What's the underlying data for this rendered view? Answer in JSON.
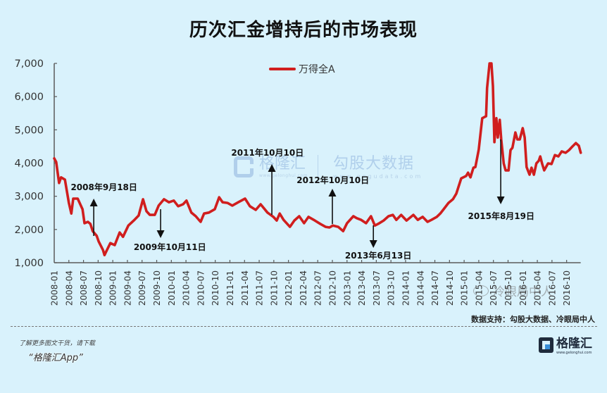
{
  "title": "历次汇金增持后的市场表现",
  "legend": {
    "label": "万得全A",
    "color": "#d01e1e"
  },
  "watermark_center": {
    "brand": "格隆汇",
    "brand_url": "www.gelonghui.com",
    "partner": "勾股大数据",
    "partner_url": "www.gogudata.com"
  },
  "watermark_corner": "冷眼局中人",
  "source": "数据支持：勾股大数据、冷眼局中人",
  "footer": {
    "prompt": "了解更多图文干货，请下载",
    "app": "“格隆汇App”",
    "logo_text": "格隆汇",
    "logo_url": "www.gelonghui.com"
  },
  "chart_data": {
    "type": "line",
    "title": "历次汇金增持后的市场表现",
    "xlabel": "",
    "ylabel": "",
    "x_unit": "months since 2008-01",
    "xlim": [
      "2008-01",
      "2016-12"
    ],
    "ylim": [
      1000,
      7000
    ],
    "grid": false,
    "legend_position": "top-center",
    "x_tick_labels": [
      "2008-01",
      "2008-04",
      "2008-07",
      "2008-10",
      "2009-01",
      "2009-04",
      "2009-07",
      "2009-10",
      "2010-01",
      "2010-04",
      "2010-07",
      "2010-10",
      "2011-01",
      "2011-04",
      "2011-07",
      "2011-10",
      "2012-01",
      "2012-04",
      "2012-07",
      "2012-10",
      "2013-01",
      "2013-04",
      "2013-07",
      "2013-10",
      "2014-01",
      "2014-04",
      "2014-07",
      "2014-10",
      "2015-01",
      "2015-04",
      "2015-07",
      "2015-10",
      "2016-01",
      "2016-04",
      "2016-07",
      "2016-10"
    ],
    "y_ticks": [
      1000,
      2000,
      3000,
      4000,
      5000,
      6000,
      7000
    ],
    "y_tick_labels": [
      "1,000",
      "2,000",
      "3,000",
      "4,000",
      "5,000",
      "6,000",
      "7,000"
    ],
    "series": [
      {
        "name": "万得全A",
        "color": "#d01e1e",
        "points": [
          [
            0,
            4140
          ],
          [
            0.4,
            4030
          ],
          [
            1.0,
            3400
          ],
          [
            1.4,
            3570
          ],
          [
            2.2,
            3500
          ],
          [
            3.0,
            2800
          ],
          [
            3.5,
            2480
          ],
          [
            3.9,
            2930
          ],
          [
            4.8,
            2930
          ],
          [
            5.8,
            2610
          ],
          [
            6.2,
            2190
          ],
          [
            6.9,
            2230
          ],
          [
            7.4,
            2170
          ],
          [
            7.9,
            1950
          ],
          [
            8.7,
            1810
          ],
          [
            9.1,
            1640
          ],
          [
            10.0,
            1380
          ],
          [
            10.3,
            1230
          ],
          [
            10.8,
            1380
          ],
          [
            11.5,
            1590
          ],
          [
            12.4,
            1530
          ],
          [
            13.4,
            1910
          ],
          [
            14.1,
            1780
          ],
          [
            15.2,
            2120
          ],
          [
            16.3,
            2270
          ],
          [
            17.3,
            2420
          ],
          [
            18.2,
            2910
          ],
          [
            18.9,
            2550
          ],
          [
            19.6,
            2440
          ],
          [
            20.6,
            2440
          ],
          [
            21.4,
            2720
          ],
          [
            22.5,
            2910
          ],
          [
            23.5,
            2820
          ],
          [
            24.5,
            2870
          ],
          [
            25.4,
            2700
          ],
          [
            26.4,
            2760
          ],
          [
            27.1,
            2870
          ],
          [
            28.1,
            2510
          ],
          [
            29.0,
            2400
          ],
          [
            30.0,
            2230
          ],
          [
            30.7,
            2480
          ],
          [
            31.7,
            2510
          ],
          [
            32.9,
            2610
          ],
          [
            33.8,
            2970
          ],
          [
            34.5,
            2820
          ],
          [
            35.5,
            2800
          ],
          [
            36.5,
            2720
          ],
          [
            37.7,
            2820
          ],
          [
            39.1,
            2930
          ],
          [
            40.1,
            2700
          ],
          [
            41.3,
            2590
          ],
          [
            42.3,
            2760
          ],
          [
            43.7,
            2510
          ],
          [
            44.9,
            2380
          ],
          [
            45.6,
            2270
          ],
          [
            46.2,
            2480
          ],
          [
            47.0,
            2290
          ],
          [
            48.3,
            2080
          ],
          [
            49.2,
            2270
          ],
          [
            50.2,
            2400
          ],
          [
            51.2,
            2190
          ],
          [
            52.1,
            2380
          ],
          [
            53.4,
            2270
          ],
          [
            54.5,
            2170
          ],
          [
            55.6,
            2080
          ],
          [
            56.4,
            2060
          ],
          [
            57.1,
            2120
          ],
          [
            58.2,
            2080
          ],
          [
            59.2,
            1950
          ],
          [
            60.0,
            2190
          ],
          [
            61.3,
            2400
          ],
          [
            62.0,
            2340
          ],
          [
            62.9,
            2290
          ],
          [
            63.9,
            2190
          ],
          [
            64.9,
            2400
          ],
          [
            65.7,
            2120
          ],
          [
            66.4,
            2170
          ],
          [
            67.5,
            2270
          ],
          [
            68.5,
            2400
          ],
          [
            69.4,
            2440
          ],
          [
            70.1,
            2290
          ],
          [
            71.1,
            2440
          ],
          [
            72.2,
            2270
          ],
          [
            73.6,
            2440
          ],
          [
            74.5,
            2290
          ],
          [
            75.5,
            2380
          ],
          [
            76.5,
            2230
          ],
          [
            77.3,
            2290
          ],
          [
            78.4,
            2380
          ],
          [
            79.1,
            2480
          ],
          [
            79.8,
            2610
          ],
          [
            80.8,
            2800
          ],
          [
            81.7,
            2910
          ],
          [
            82.4,
            3080
          ],
          [
            83.4,
            3540
          ],
          [
            84.4,
            3610
          ],
          [
            84.8,
            3710
          ],
          [
            85.3,
            3570
          ],
          [
            85.9,
            3860
          ],
          [
            86.3,
            3880
          ],
          [
            87.0,
            4410
          ],
          [
            87.7,
            5350
          ],
          [
            88.5,
            5410
          ],
          [
            88.7,
            6260
          ],
          [
            89.2,
            7000
          ],
          [
            89.6,
            7000
          ],
          [
            89.9,
            6320
          ],
          [
            90.2,
            4630
          ],
          [
            90.6,
            5350
          ],
          [
            90.9,
            4770
          ],
          [
            91.3,
            5300
          ],
          [
            91.6,
            4710
          ],
          [
            92.1,
            3990
          ],
          [
            92.5,
            3780
          ],
          [
            93.1,
            3780
          ],
          [
            93.5,
            4390
          ],
          [
            93.9,
            4460
          ],
          [
            94.5,
            4920
          ],
          [
            94.9,
            4710
          ],
          [
            95.4,
            4710
          ],
          [
            96.0,
            5050
          ],
          [
            96.4,
            4770
          ],
          [
            96.8,
            3880
          ],
          [
            97.4,
            3650
          ],
          [
            97.8,
            3860
          ],
          [
            98.3,
            3650
          ],
          [
            98.8,
            3990
          ],
          [
            99.3,
            4070
          ],
          [
            99.6,
            4200
          ],
          [
            100.0,
            3970
          ],
          [
            100.4,
            3780
          ],
          [
            101.2,
            3990
          ],
          [
            101.9,
            3970
          ],
          [
            102.6,
            4240
          ],
          [
            103.3,
            4200
          ],
          [
            104.0,
            4350
          ],
          [
            104.8,
            4310
          ],
          [
            105.5,
            4390
          ],
          [
            106.2,
            4500
          ],
          [
            106.9,
            4600
          ],
          [
            107.5,
            4520
          ],
          [
            107.9,
            4310
          ]
        ]
      }
    ],
    "annotations": [
      {
        "label": "2008年9月18日",
        "direction": "up",
        "t": 8.1,
        "from": 1806,
        "to": 2929,
        "label_t": 10.2,
        "label_v": 3290
      },
      {
        "label": "2009年10月11日",
        "direction": "down",
        "t": 21.8,
        "from": 2611,
        "to": 1742,
        "label_t": 23.7,
        "label_v": 1488
      },
      {
        "label": "2011年10月10日",
        "direction": "up",
        "t": 44.6,
        "from": 2442,
        "to": 3968,
        "label_t": 43.7,
        "label_v": 4328
      },
      {
        "label": "2012年10月10日",
        "direction": "up",
        "t": 57.0,
        "from": 2166,
        "to": 3226,
        "label_t": 57.1,
        "label_v": 3502
      },
      {
        "label": "2013年6月13日",
        "direction": "down",
        "t": 65.4,
        "from": 2124,
        "to": 1445,
        "label_t": 66.4,
        "label_v": 1233
      },
      {
        "label": "2015年8月19日",
        "direction": "down",
        "t": 91.5,
        "from": 4710,
        "to": 2760,
        "label_t": 91.6,
        "label_v": 2420
      }
    ]
  }
}
